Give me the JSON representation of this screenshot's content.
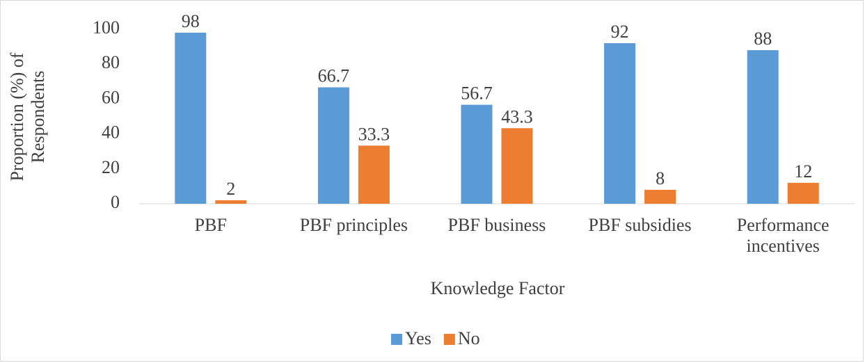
{
  "chart_data": {
    "type": "bar",
    "categories": [
      "PBF",
      "PBF principles",
      "PBF business",
      "PBF subsidies",
      "Performance incentives"
    ],
    "series": [
      {
        "name": "Yes",
        "color": "#5b9bd5",
        "values": [
          98,
          66.7,
          56.7,
          92,
          88
        ]
      },
      {
        "name": "No",
        "color": "#ed7d31",
        "values": [
          2,
          33.3,
          43.3,
          8,
          12
        ]
      }
    ],
    "y_label": "Proportion (%) of Respondents",
    "x_label": "Knowledge Factor",
    "ylim": [
      0,
      100
    ],
    "yticks": [
      0,
      20,
      40,
      60,
      80,
      100
    ],
    "grid": false,
    "legend": "bottom"
  }
}
